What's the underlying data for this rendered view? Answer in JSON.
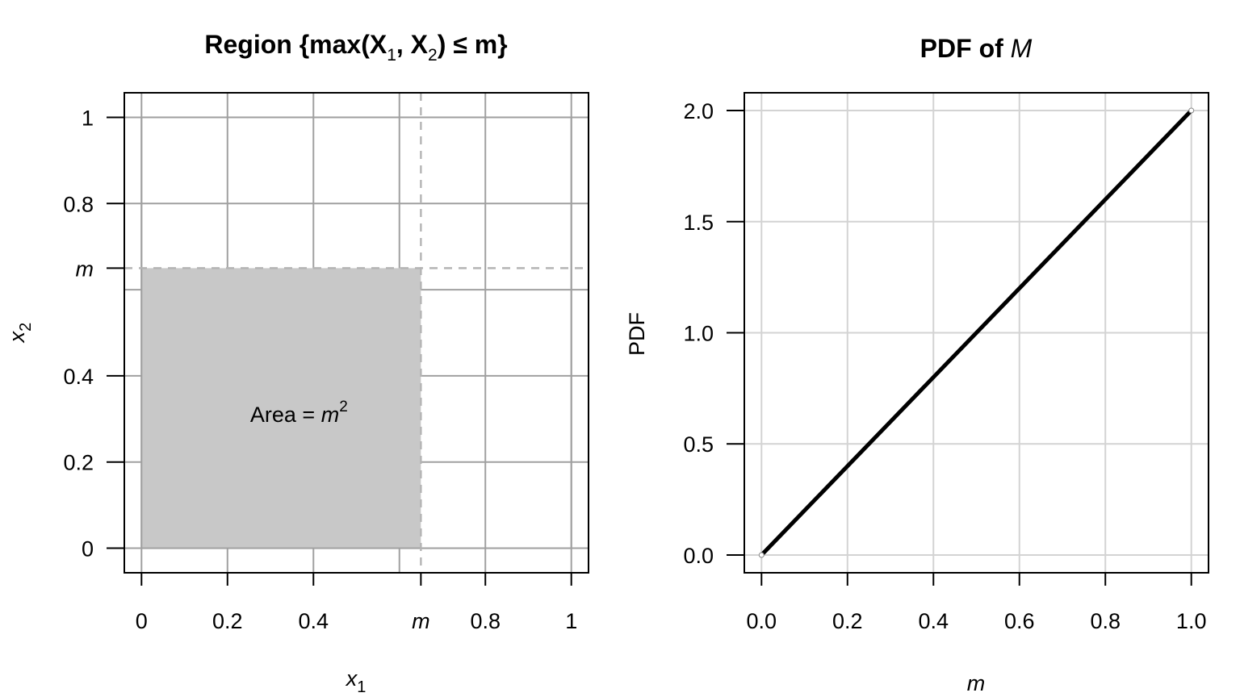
{
  "chart_data": [
    {
      "type": "area",
      "title": {
        "prefix": "Region {max(X",
        "sub1": "1",
        "mid": ", X",
        "sub2": "2",
        "suffix": ")  ≤  m}"
      },
      "xlabel": {
        "main": "x",
        "sub": "1"
      },
      "ylabel": {
        "main": "x",
        "sub": "2"
      },
      "xlim": [
        -0.04,
        1.04
      ],
      "ylim": [
        -0.057,
        1.057
      ],
      "m": 0.65,
      "x_ticks": [
        {
          "value": 0,
          "label": "0"
        },
        {
          "value": 0.2,
          "label": "0.2"
        },
        {
          "value": 0.4,
          "label": "0.4"
        },
        {
          "value": 0.65,
          "label": "m"
        },
        {
          "value": 0.8,
          "label": "0.8"
        },
        {
          "value": 1,
          "label": "1"
        }
      ],
      "y_ticks": [
        {
          "value": 0,
          "label": "0"
        },
        {
          "value": 0.2,
          "label": "0.2"
        },
        {
          "value": 0.4,
          "label": "0.4"
        },
        {
          "value": 0.65,
          "label": "m"
        },
        {
          "value": 0.8,
          "label": "0.8"
        },
        {
          "value": 1,
          "label": "1"
        }
      ],
      "grid_x": [
        0,
        0.2,
        0.4,
        0.6,
        0.8,
        1
      ],
      "grid_y": [
        0,
        0.2,
        0.4,
        0.6,
        0.8,
        1
      ],
      "shaded_region": {
        "x": [
          0,
          0.65
        ],
        "y": [
          0,
          0.65
        ]
      },
      "annotation": {
        "text": "Area = ",
        "var": "m",
        "sup": "2",
        "x": 0.325,
        "y": 0.31
      },
      "grid": true,
      "colors": {
        "fill": "#c8c8c8",
        "grid": "#a0a0a0",
        "dash": "#b4b4b4"
      }
    },
    {
      "type": "line",
      "title": {
        "text": "PDF of ",
        "var": "M"
      },
      "xlabel": "m",
      "ylabel": "PDF",
      "xlim": [
        -0.04,
        1.04
      ],
      "ylim": [
        -0.08,
        2.08
      ],
      "x_ticks": [
        "0.0",
        "0.2",
        "0.4",
        "0.6",
        "0.8",
        "1.0"
      ],
      "x_tick_values": [
        0,
        0.2,
        0.4,
        0.6,
        0.8,
        1.0
      ],
      "y_ticks": [
        "0.0",
        "0.5",
        "1.0",
        "1.5",
        "2.0"
      ],
      "y_tick_values": [
        0,
        0.5,
        1.0,
        1.5,
        2.0
      ],
      "series": [
        {
          "x": [
            0,
            1
          ],
          "y": [
            0,
            2
          ]
        }
      ],
      "grid": true,
      "colors": {
        "line": "#000000",
        "grid": "#d3d3d3"
      }
    }
  ]
}
